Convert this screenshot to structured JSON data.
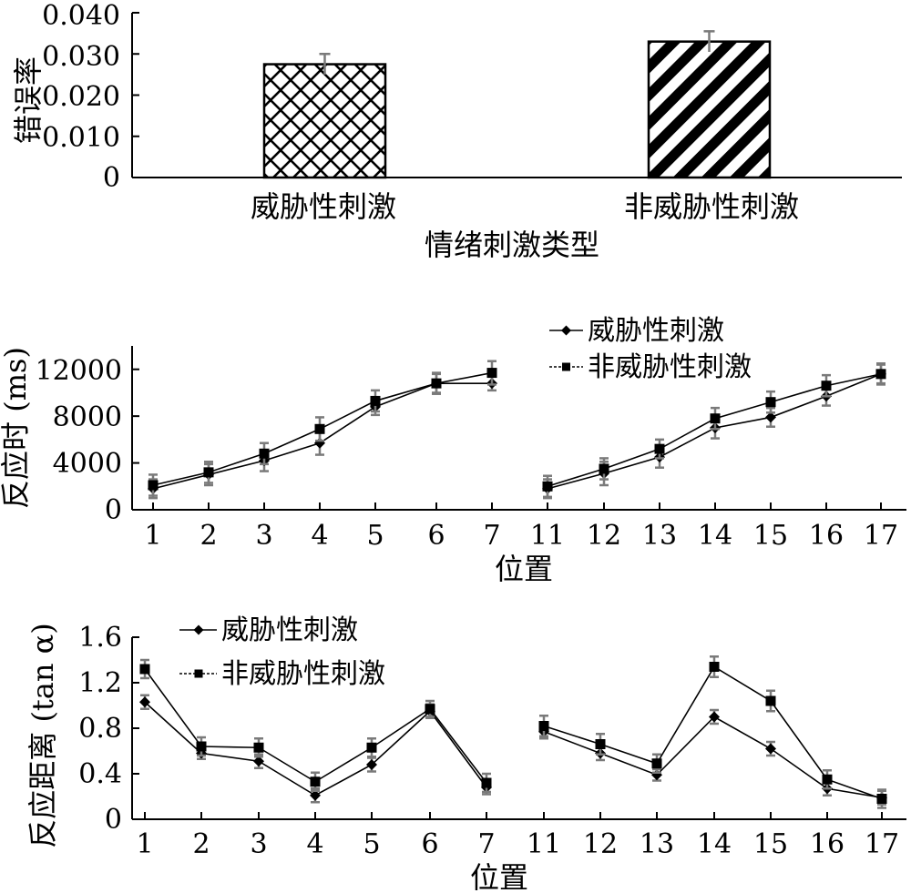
{
  "chart_data": [
    {
      "type": "bar",
      "ylabel": "错误率",
      "xlabel": "情绪刺激类型",
      "categories": [
        "威胁性刺激",
        "非威胁性刺激"
      ],
      "values": [
        0.0275,
        0.033
      ],
      "errors": [
        0.0025,
        0.0025
      ],
      "ylim": [
        0,
        0.04
      ],
      "yticks": [
        "0",
        "0.010",
        "0.020",
        "0.030",
        "0.040"
      ],
      "patterns": [
        "diamond-lattice",
        "diagonal-stripes"
      ],
      "grid": false,
      "legend": "none"
    },
    {
      "type": "line",
      "ylabel": "反应时 (ms)",
      "xlabel": "位置",
      "categories": [
        "1",
        "2",
        "3",
        "4",
        "5",
        "6",
        "7",
        "11",
        "12",
        "13",
        "14",
        "15",
        "16",
        "17"
      ],
      "yticks": [
        "0",
        "4000",
        "8000",
        "12000"
      ],
      "ylim": [
        0,
        14000
      ],
      "grid": false,
      "legend": "top-right",
      "series": [
        {
          "name": "威胁性刺激",
          "marker": "diamond",
          "segments": [
            [
              1800,
              3000,
              4200,
              5700,
              8800,
              10800,
              10800
            ],
            [
              1800,
              3100,
              4500,
              7000,
              7900,
              9700,
              11600
            ]
          ],
          "errors": [
            [
              800,
              900,
              900,
              1000,
              700,
              800,
              600
            ],
            [
              800,
              1000,
              900,
              900,
              800,
              800,
              800
            ]
          ]
        },
        {
          "name": "非威胁性刺激",
          "marker": "square",
          "segments": [
            [
              2100,
              3200,
              4800,
              6900,
              9300,
              10800,
              11700
            ],
            [
              2000,
              3500,
              5200,
              7800,
              9200,
              10600,
              11600
            ]
          ],
          "errors": [
            [
              900,
              900,
              900,
              1000,
              900,
              900,
              1000
            ],
            [
              900,
              900,
              800,
              900,
              900,
              900,
              900
            ]
          ]
        }
      ]
    },
    {
      "type": "line",
      "ylabel": "反应距离 (tan α)",
      "xlabel": "位置",
      "categories": [
        "1",
        "2",
        "3",
        "4",
        "5",
        "6",
        "7",
        "11",
        "12",
        "13",
        "14",
        "15",
        "16",
        "17"
      ],
      "yticks": [
        "0",
        "0.4",
        "0.8",
        "1.2",
        "1.6"
      ],
      "ylim": [
        0,
        1.6
      ],
      "grid": false,
      "legend": "top-left",
      "series": [
        {
          "name": "威胁性刺激",
          "marker": "diamond",
          "segments": [
            [
              1.03,
              0.58,
              0.51,
              0.21,
              0.48,
              0.95,
              0.28
            ],
            [
              0.77,
              0.58,
              0.39,
              0.9,
              0.62,
              0.27,
              0.19
            ]
          ],
          "errors": [
            [
              0.06,
              0.05,
              0.06,
              0.06,
              0.06,
              0.06,
              0.06
            ],
            [
              0.06,
              0.06,
              0.05,
              0.06,
              0.06,
              0.06,
              0.06
            ]
          ]
        },
        {
          "name": "非威胁性刺激",
          "marker": "square",
          "segments": [
            [
              1.32,
              0.64,
              0.63,
              0.33,
              0.63,
              0.97,
              0.32
            ],
            [
              0.82,
              0.66,
              0.49,
              1.34,
              1.04,
              0.35,
              0.18
            ]
          ],
          "errors": [
            [
              0.08,
              0.08,
              0.08,
              0.08,
              0.08,
              0.07,
              0.08
            ],
            [
              0.09,
              0.09,
              0.08,
              0.09,
              0.09,
              0.08,
              0.08
            ]
          ]
        }
      ]
    }
  ]
}
